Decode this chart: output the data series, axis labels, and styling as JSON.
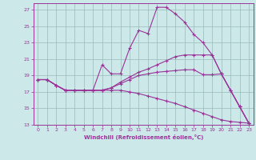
{
  "xlabel": "Windchill (Refroidissement éolien,°C)",
  "xlim": [
    -0.5,
    23.5
  ],
  "ylim": [
    13,
    27.8
  ],
  "yticks": [
    13,
    15,
    17,
    19,
    21,
    23,
    25,
    27
  ],
  "xticks": [
    0,
    1,
    2,
    3,
    4,
    5,
    6,
    7,
    8,
    9,
    10,
    11,
    12,
    13,
    14,
    15,
    16,
    17,
    18,
    19,
    20,
    21,
    22,
    23
  ],
  "bg_color": "#cce8e8",
  "line_color": "#993399",
  "grid_color": "#99bbbb",
  "lines": [
    [
      18.5,
      18.5,
      17.8,
      17.2,
      17.2,
      17.2,
      17.2,
      20.3,
      19.2,
      19.2,
      22.3,
      24.5,
      24.1,
      27.3,
      27.3,
      26.5,
      25.5,
      24.0,
      23.0,
      21.5,
      19.2,
      17.2,
      15.2,
      13.2
    ],
    [
      18.5,
      18.5,
      17.8,
      17.2,
      17.2,
      17.2,
      17.2,
      17.2,
      17.5,
      18.2,
      18.8,
      19.4,
      19.8,
      20.3,
      20.8,
      21.3,
      21.5,
      21.5,
      21.5,
      21.5,
      19.2,
      17.2,
      15.2,
      13.2
    ],
    [
      18.5,
      18.5,
      17.8,
      17.2,
      17.2,
      17.2,
      17.2,
      17.2,
      17.5,
      18.0,
      18.5,
      19.0,
      19.2,
      19.4,
      19.5,
      19.6,
      19.7,
      19.7,
      19.1,
      19.1,
      19.2,
      17.2,
      15.2,
      13.2
    ],
    [
      18.5,
      18.5,
      17.8,
      17.2,
      17.2,
      17.2,
      17.2,
      17.2,
      17.2,
      17.2,
      17.0,
      16.8,
      16.5,
      16.2,
      15.9,
      15.6,
      15.2,
      14.8,
      14.4,
      14.0,
      13.6,
      13.4,
      13.3,
      13.2
    ]
  ]
}
